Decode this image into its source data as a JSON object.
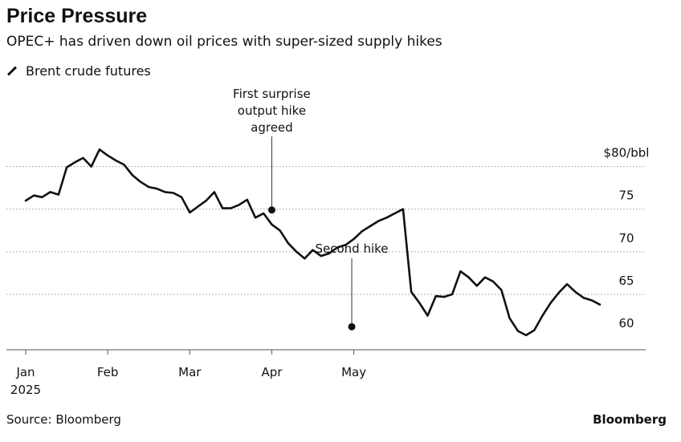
{
  "header": {
    "title": "Price Pressure",
    "subtitle": "OPEC+ has driven down oil prices with super-sized supply hikes"
  },
  "footer": {
    "source": "Source: Bloomberg",
    "brand": "Bloomberg"
  },
  "chart_data": {
    "type": "line",
    "title": "Price Pressure",
    "subtitle": "OPEC+ has driven down oil prices with super-sized supply hikes",
    "series": [
      {
        "name": "Brent crude futures",
        "x": [
          0,
          2,
          4,
          6,
          8,
          10,
          12,
          14,
          16,
          18,
          20,
          22,
          24,
          26,
          28,
          30,
          32,
          34,
          36,
          38,
          40,
          42,
          44,
          46,
          48,
          50,
          52,
          54,
          56,
          58,
          60,
          62,
          64,
          66,
          68,
          70,
          72,
          74,
          76,
          78,
          80,
          82,
          84,
          86,
          88,
          90,
          92,
          94,
          96,
          98,
          100,
          102,
          104,
          106,
          108,
          110,
          112,
          114,
          116,
          118,
          120,
          122,
          124,
          126,
          128,
          130,
          132,
          134,
          136,
          138,
          140
        ],
        "values": [
          76.0,
          76.6,
          76.4,
          77.0,
          76.7,
          79.9,
          80.5,
          81.0,
          80.0,
          82.0,
          81.3,
          80.7,
          80.2,
          79.0,
          78.2,
          77.6,
          77.4,
          77.0,
          76.9,
          76.4,
          74.6,
          75.3,
          76.0,
          77.0,
          75.1,
          75.1,
          75.5,
          76.1,
          74.0,
          74.5,
          73.2,
          72.5,
          71.0,
          70.0,
          69.2,
          70.2,
          69.5,
          69.8,
          70.5,
          70.8,
          71.5,
          72.4,
          73.0,
          73.6,
          74.0,
          74.5,
          75.0,
          65.3,
          64.0,
          62.5,
          64.8,
          64.7,
          65.0,
          67.7,
          67.0,
          66.0,
          67.0,
          66.5,
          65.5,
          62.2,
          60.7,
          60.2,
          60.8,
          62.5,
          64.0,
          65.2,
          66.2,
          65.3,
          64.6,
          64.3,
          63.8
        ]
      }
    ],
    "x_labels": [
      {
        "x": 0,
        "label": "Jan"
      },
      {
        "x": 20,
        "label": "Feb"
      },
      {
        "x": 40,
        "label": "Mar"
      },
      {
        "x": 60,
        "label": "Apr"
      },
      {
        "x": 80,
        "label": "May"
      }
    ],
    "x_year_label": "2025",
    "y_ticks": [
      60,
      65,
      70,
      75,
      80
    ],
    "y_tick_labels": [
      "60",
      "65",
      "70",
      "75",
      "$80/bbl"
    ],
    "ylim": [
      58.5,
      82.5
    ],
    "xlim": [
      0,
      144
    ],
    "grid": "horizontal dotted",
    "legend_position": "top-left",
    "annotations": [
      {
        "x": 60,
        "y": 74.9,
        "text": [
          "First surprise",
          "output hike",
          "agreed"
        ]
      },
      {
        "x": 79.5,
        "y": 61.2,
        "text": [
          "Second hike"
        ]
      }
    ]
  }
}
